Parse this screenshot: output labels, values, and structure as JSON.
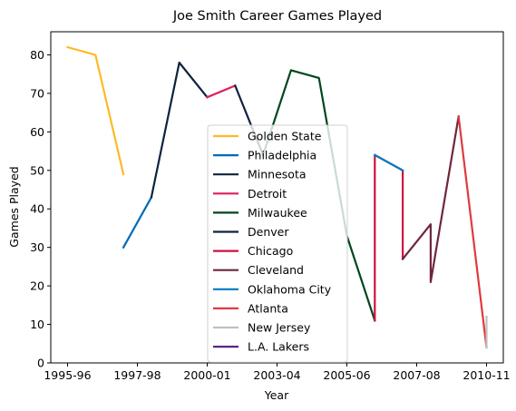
{
  "chart_data": {
    "type": "line",
    "title": "Joe Smith  Career Games Played",
    "xlabel": "Year",
    "ylabel": "Games Played",
    "x_tick_labels": [
      "1995-96",
      "1997-98",
      "2000-01",
      "2003-04",
      "2005-06",
      "2007-08",
      "2010-11"
    ],
    "ylim": [
      0,
      86
    ],
    "y_ticks": [
      0,
      10,
      20,
      30,
      40,
      50,
      60,
      70,
      80
    ],
    "grid": false,
    "legend_position": "center",
    "series": [
      {
        "name": "Golden State",
        "color": "#FDB927",
        "points": [
          [
            0,
            82
          ],
          [
            1,
            80
          ],
          [
            2,
            49
          ]
        ]
      },
      {
        "name": "Philadelphia",
        "color": "#006BB6",
        "points": [
          [
            2,
            30
          ],
          [
            3,
            43
          ]
        ]
      },
      {
        "name": "Minnesota",
        "color": "#0C2340",
        "points": [
          [
            3,
            43
          ],
          [
            4,
            78
          ],
          [
            5,
            69
          ]
        ]
      },
      {
        "name": "Detroit",
        "color": "#E01E5A",
        "points": [
          [
            5,
            69
          ],
          [
            6,
            72
          ]
        ]
      },
      {
        "name": "Milwaukee",
        "color": "#00471B",
        "points": [
          [
            7,
            54
          ],
          [
            8,
            76
          ],
          [
            9,
            74
          ],
          [
            10,
            33
          ],
          [
            11,
            11
          ]
        ]
      },
      {
        "name": "Denver",
        "color": "#0E2240",
        "points": [
          [
            6,
            72
          ],
          [
            7,
            54
          ]
        ]
      },
      {
        "name": "Chicago",
        "color": "#CE1141",
        "points": [
          [
            11,
            11
          ],
          [
            11,
            54
          ],
          [
            12,
            50
          ],
          [
            12,
            27
          ]
        ]
      },
      {
        "name": "Cleveland",
        "color": "#6F263D",
        "points": [
          [
            12,
            27
          ],
          [
            13,
            36
          ],
          [
            13,
            21
          ],
          [
            14,
            64
          ]
        ]
      },
      {
        "name": "Oklahoma City",
        "color": "#007AC1",
        "points": [
          [
            11,
            54
          ],
          [
            12,
            50
          ]
        ]
      },
      {
        "name": "Atlanta",
        "color": "#E03A3E",
        "points": [
          [
            14,
            64
          ],
          [
            15,
            4
          ]
        ]
      },
      {
        "name": "New Jersey",
        "color": "#BEC0C2",
        "points": [
          [
            15,
            4
          ],
          [
            15,
            12
          ]
        ]
      },
      {
        "name": "L.A. Lakers",
        "color": "#552583",
        "points": []
      }
    ]
  }
}
